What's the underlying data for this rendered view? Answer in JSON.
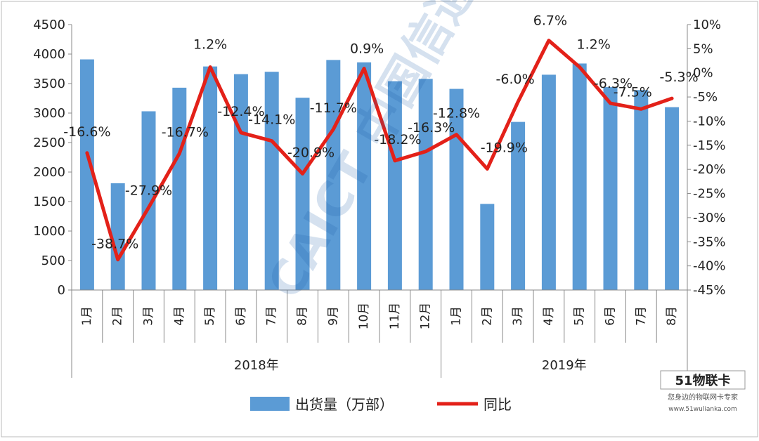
{
  "chart_data": {
    "type": "bar+line",
    "categories": [
      "1月",
      "2月",
      "3月",
      "4月",
      "5月",
      "6月",
      "7月",
      "8月",
      "9月",
      "10月",
      "11月",
      "12月",
      "1月",
      "2月",
      "3月",
      "4月",
      "5月",
      "6月",
      "7月",
      "8月"
    ],
    "groups": [
      {
        "label": "2018年",
        "count": 12
      },
      {
        "label": "2019年",
        "count": 8
      }
    ],
    "series": [
      {
        "name": "出货量（万部）",
        "kind": "bar",
        "axis": "left",
        "color": "#5b9bd5",
        "values": [
          3910,
          1810,
          3030,
          3430,
          3790,
          3660,
          3700,
          3260,
          3900,
          3860,
          3540,
          3580,
          3410,
          1460,
          2850,
          3650,
          3840,
          3440,
          3390,
          3100
        ]
      },
      {
        "name": "同比",
        "kind": "line",
        "axis": "right",
        "color": "#e32119",
        "values": [
          -16.6,
          -38.7,
          -27.9,
          -16.7,
          1.2,
          -12.4,
          -14.1,
          -20.9,
          -11.7,
          0.9,
          -18.2,
          -16.3,
          -12.8,
          -19.9,
          -6.0,
          6.7,
          1.2,
          -6.3,
          -7.5,
          -5.3
        ],
        "labels": [
          "-16.6%",
          "-38.7%",
          "-27.9%",
          "-16.7%",
          "1.2%",
          "-12.4%",
          "-14.1%",
          "-20.9%",
          "-11.7%",
          "0.9%",
          "-18.2%",
          "-16.3%",
          "-12.8%",
          "-19.9%",
          "-6.0%",
          "6.7%",
          "1.2%",
          "-6.3%",
          "-7.5%",
          "-5.3%"
        ]
      }
    ],
    "y_left": {
      "min": 0,
      "max": 4500,
      "step": 500,
      "ticks": [
        "0",
        "500",
        "1000",
        "1500",
        "2000",
        "2500",
        "3000",
        "3500",
        "4000",
        "4500"
      ]
    },
    "y_right": {
      "min": -45,
      "max": 10,
      "step": 5,
      "ticks": [
        "-45%",
        "-40%",
        "-35%",
        "-30%",
        "-25%",
        "-20%",
        "-15%",
        "-10%",
        "-5%",
        "0%",
        "5%",
        "10%"
      ]
    },
    "legend_position": "bottom",
    "grid": false
  },
  "watermark": {
    "text": "CAICT 中国信通院"
  },
  "logo": {
    "text": "51物联卡",
    "tagline": "您身边的物联网卡专家",
    "url_text": "www.51wulianka.com"
  }
}
